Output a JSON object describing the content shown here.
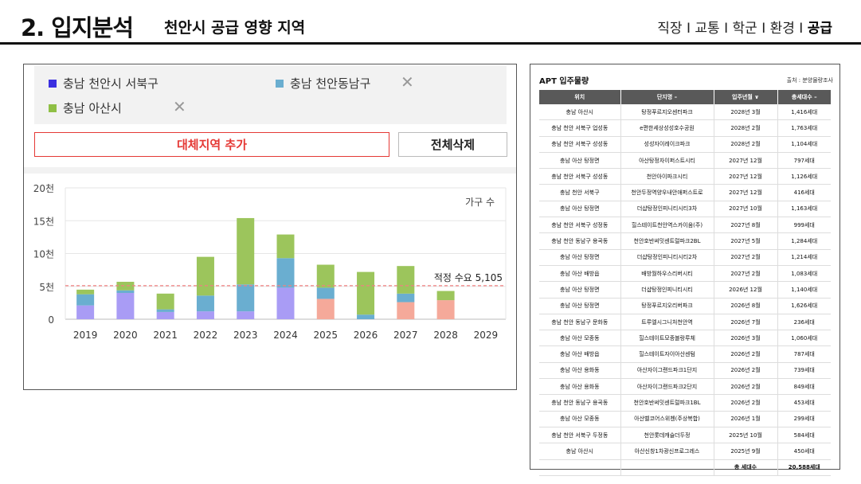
{
  "header": {
    "title": "2. 입지분석",
    "subtitle": "천안시 공급 영향 지역",
    "nav": [
      "직장",
      "교통",
      "학군",
      "환경",
      "공급"
    ],
    "nav_separator": "I",
    "active_nav": "공급"
  },
  "legend": [
    {
      "label": "충남 천안시 서북구",
      "color": "#3b2fe0"
    },
    {
      "label": "충남 천안동남구",
      "color": "#6aaed0"
    },
    {
      "label": "충남 아산시",
      "color": "#8fbf45"
    }
  ],
  "remove_glyph": "✕",
  "buttons": {
    "add_region": "대체지역 추가",
    "delete_all": "전체삭제"
  },
  "colors": {
    "seobuk": "#a99cf5",
    "dongnam": "#6aaed0",
    "asan": "#9cc55c",
    "future": "#f5a99a",
    "threshold": "#f08080"
  },
  "chart_data": {
    "type": "bar",
    "stacked": true,
    "x": [
      "2019",
      "2020",
      "2021",
      "2022",
      "2023",
      "2024",
      "2025",
      "2026",
      "2027",
      "2028",
      "2029"
    ],
    "series": [
      {
        "name": "충남 천안시 서북구",
        "values": [
          2100,
          4000,
          1100,
          1200,
          1200,
          4800,
          3100,
          0,
          2600,
          2900,
          0
        ]
      },
      {
        "name": "충남 천안동남구",
        "values": [
          1700,
          400,
          400,
          2400,
          4100,
          4500,
          1700,
          700,
          1300,
          0,
          0
        ]
      },
      {
        "name": "충남 아산시",
        "values": [
          700,
          1300,
          2400,
          5900,
          10100,
          3600,
          3500,
          6500,
          4200,
          1400,
          0
        ]
      }
    ],
    "yticks": [
      "0",
      "5천",
      "10천",
      "15천",
      "20천"
    ],
    "ylim": [
      0,
      20000
    ],
    "ylabel": "가구 수",
    "threshold": {
      "value": 5105,
      "label": "적정 수요 5,105"
    },
    "grid": true
  },
  "table": {
    "title": "APT 입주물량",
    "source": "출처 : 분양물량조사",
    "headers": [
      "위치",
      "단지명 –",
      "입주년월 ∨",
      "총세대수 –"
    ],
    "rows": [
      [
        "충남 아산시",
        "탕정푸르지오센터파크",
        "2028년 3월",
        "1,416세대"
      ],
      [
        "충남 천안 서북구 업성동",
        "e편한세상성성호수공원",
        "2028년 2월",
        "1,763세대"
      ],
      [
        "충남 천안 서북구 성성동",
        "성성자이레이크파크",
        "2028년 2월",
        "1,104세대"
      ],
      [
        "충남 아산 탕정면",
        "아산탕정자이퍼스트시티",
        "2027년 12월",
        "797세대"
      ],
      [
        "충남 천안 서북구 성성동",
        "천안아이파크시티",
        "2027년 12월",
        "1,126세대"
      ],
      [
        "충남 천안 서북구",
        "천안두정역양우내안애퍼스트로",
        "2027년 12월",
        "416세대"
      ],
      [
        "충남 아산 탕정면",
        "더샵탕정인피니티시티3차",
        "2027년 10월",
        "1,163세대"
      ],
      [
        "충남 천안 서북구 성정동",
        "힐스테이트천안역스카이움(주)",
        "2027년 8월",
        "999세대"
      ],
      [
        "충남 천안 동남구 용곡동",
        "천안호반써밋센트럴파크2BL",
        "2027년 5월",
        "1,284세대"
      ],
      [
        "충남 아산 탕정면",
        "더샵탕정인피니티시티2차",
        "2027년 2월",
        "1,214세대"
      ],
      [
        "충남 아산 배방읍",
        "배방월하우스리버시티",
        "2027년 2월",
        "1,083세대"
      ],
      [
        "충남 아산 탕정면",
        "더샵탕정인피니티시티",
        "2026년 12월",
        "1,140세대"
      ],
      [
        "충남 아산 탕정면",
        "탕정푸르지오리버파크",
        "2026년 8월",
        "1,626세대"
      ],
      [
        "충남 천안 동남구 문화동",
        "트루엘시그니처천안역",
        "2026년 7월",
        "236세대"
      ],
      [
        "충남 아산 모종동",
        "힐스테이트모종블랑루체",
        "2026년 3월",
        "1,060세대"
      ],
      [
        "충남 아산 배방읍",
        "힐스테이트자이아산센텀",
        "2026년 2월",
        "787세대"
      ],
      [
        "충남 아산 용화동",
        "아산자이그랜드파크1단지",
        "2026년 2월",
        "739세대"
      ],
      [
        "충남 아산 용화동",
        "아산자이그랜드파크2단지",
        "2026년 2월",
        "849세대"
      ],
      [
        "충남 천안 동남구 용곡동",
        "천안호반써밋센트럴파크1BL",
        "2026년 2월",
        "453세대"
      ],
      [
        "충남 아산 모종동",
        "아산벨코어스위첸(주상복합)",
        "2026년 1월",
        "299세대"
      ],
      [
        "충남 천안 서북구 두정동",
        "천안롯데캐슬더두정",
        "2025년 10월",
        "584세대"
      ],
      [
        "충남 아산시",
        "아산신창1차광신프로그레스",
        "2025년 9월",
        "450세대"
      ]
    ],
    "total_label": "총 세대수",
    "total_value": "20,588세대"
  }
}
